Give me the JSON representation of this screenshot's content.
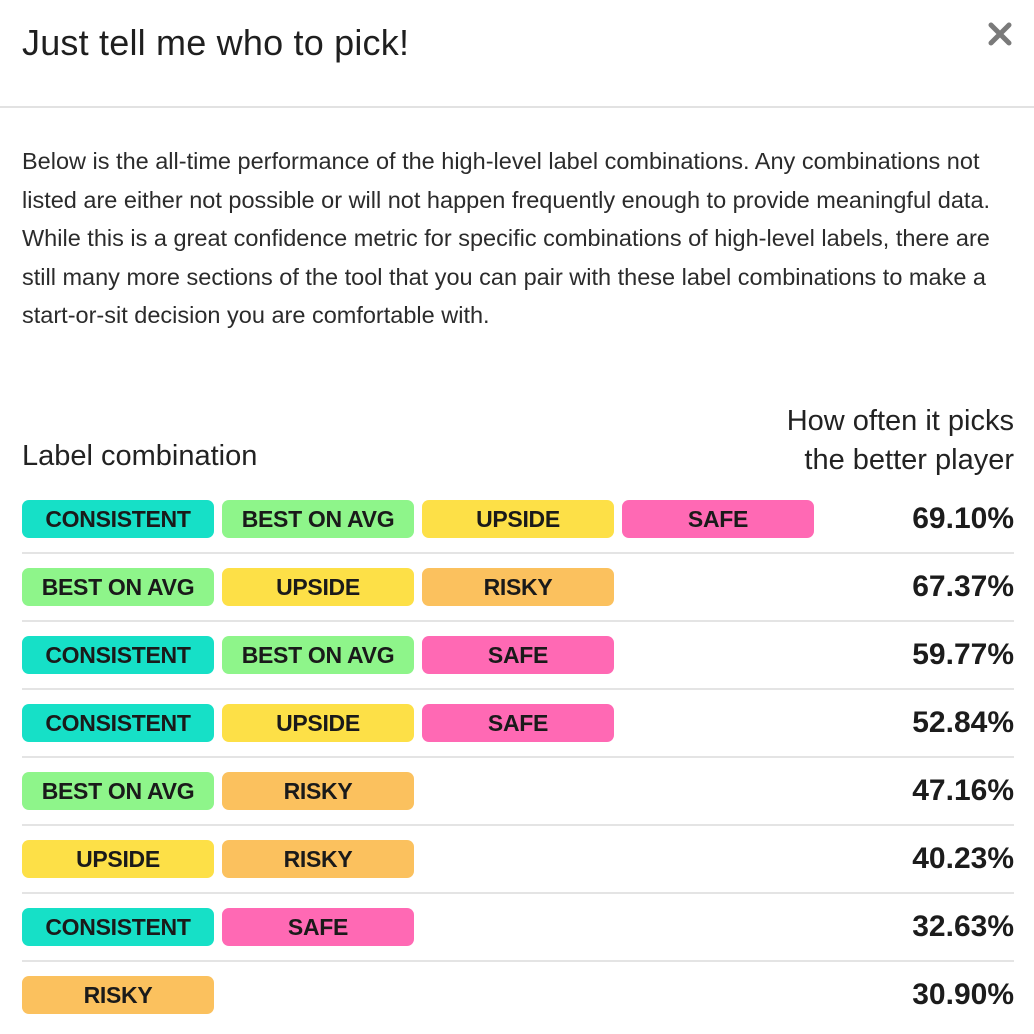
{
  "modal": {
    "title": "Just tell me who to pick!",
    "close_icon": "close-icon",
    "description": "Below is the all-time performance of the high-level label combinations. Any combinations not listed are either not possible or will not happen frequently enough to provide meaningful data. While this is a great confidence metric for specific combinations of high-level labels, there are still many more sections of the tool that you can pair with these label combinations to make a start-or-sit decision you are comfortable with."
  },
  "table": {
    "col_label": "Label combination",
    "col_pct_line1": "How often it picks",
    "col_pct_line2": "the better player",
    "label_colors": {
      "CONSISTENT": "#16e0c7",
      "BEST ON AVG": "#8ef58a",
      "UPSIDE": "#fde047",
      "SAFE": "#ff69b4",
      "RISKY": "#fbc15e"
    },
    "rows": [
      {
        "labels": [
          "CONSISTENT",
          "BEST ON AVG",
          "UPSIDE",
          "SAFE"
        ],
        "pct": "69.10%"
      },
      {
        "labels": [
          "BEST ON AVG",
          "UPSIDE",
          "RISKY"
        ],
        "pct": "67.37%"
      },
      {
        "labels": [
          "CONSISTENT",
          "BEST ON AVG",
          "SAFE"
        ],
        "pct": "59.77%"
      },
      {
        "labels": [
          "CONSISTENT",
          "UPSIDE",
          "SAFE"
        ],
        "pct": "52.84%"
      },
      {
        "labels": [
          "BEST ON AVG",
          "RISKY"
        ],
        "pct": "47.16%"
      },
      {
        "labels": [
          "UPSIDE",
          "RISKY"
        ],
        "pct": "40.23%"
      },
      {
        "labels": [
          "CONSISTENT",
          "SAFE"
        ],
        "pct": "32.63%"
      },
      {
        "labels": [
          "RISKY"
        ],
        "pct": "30.90%"
      }
    ]
  }
}
